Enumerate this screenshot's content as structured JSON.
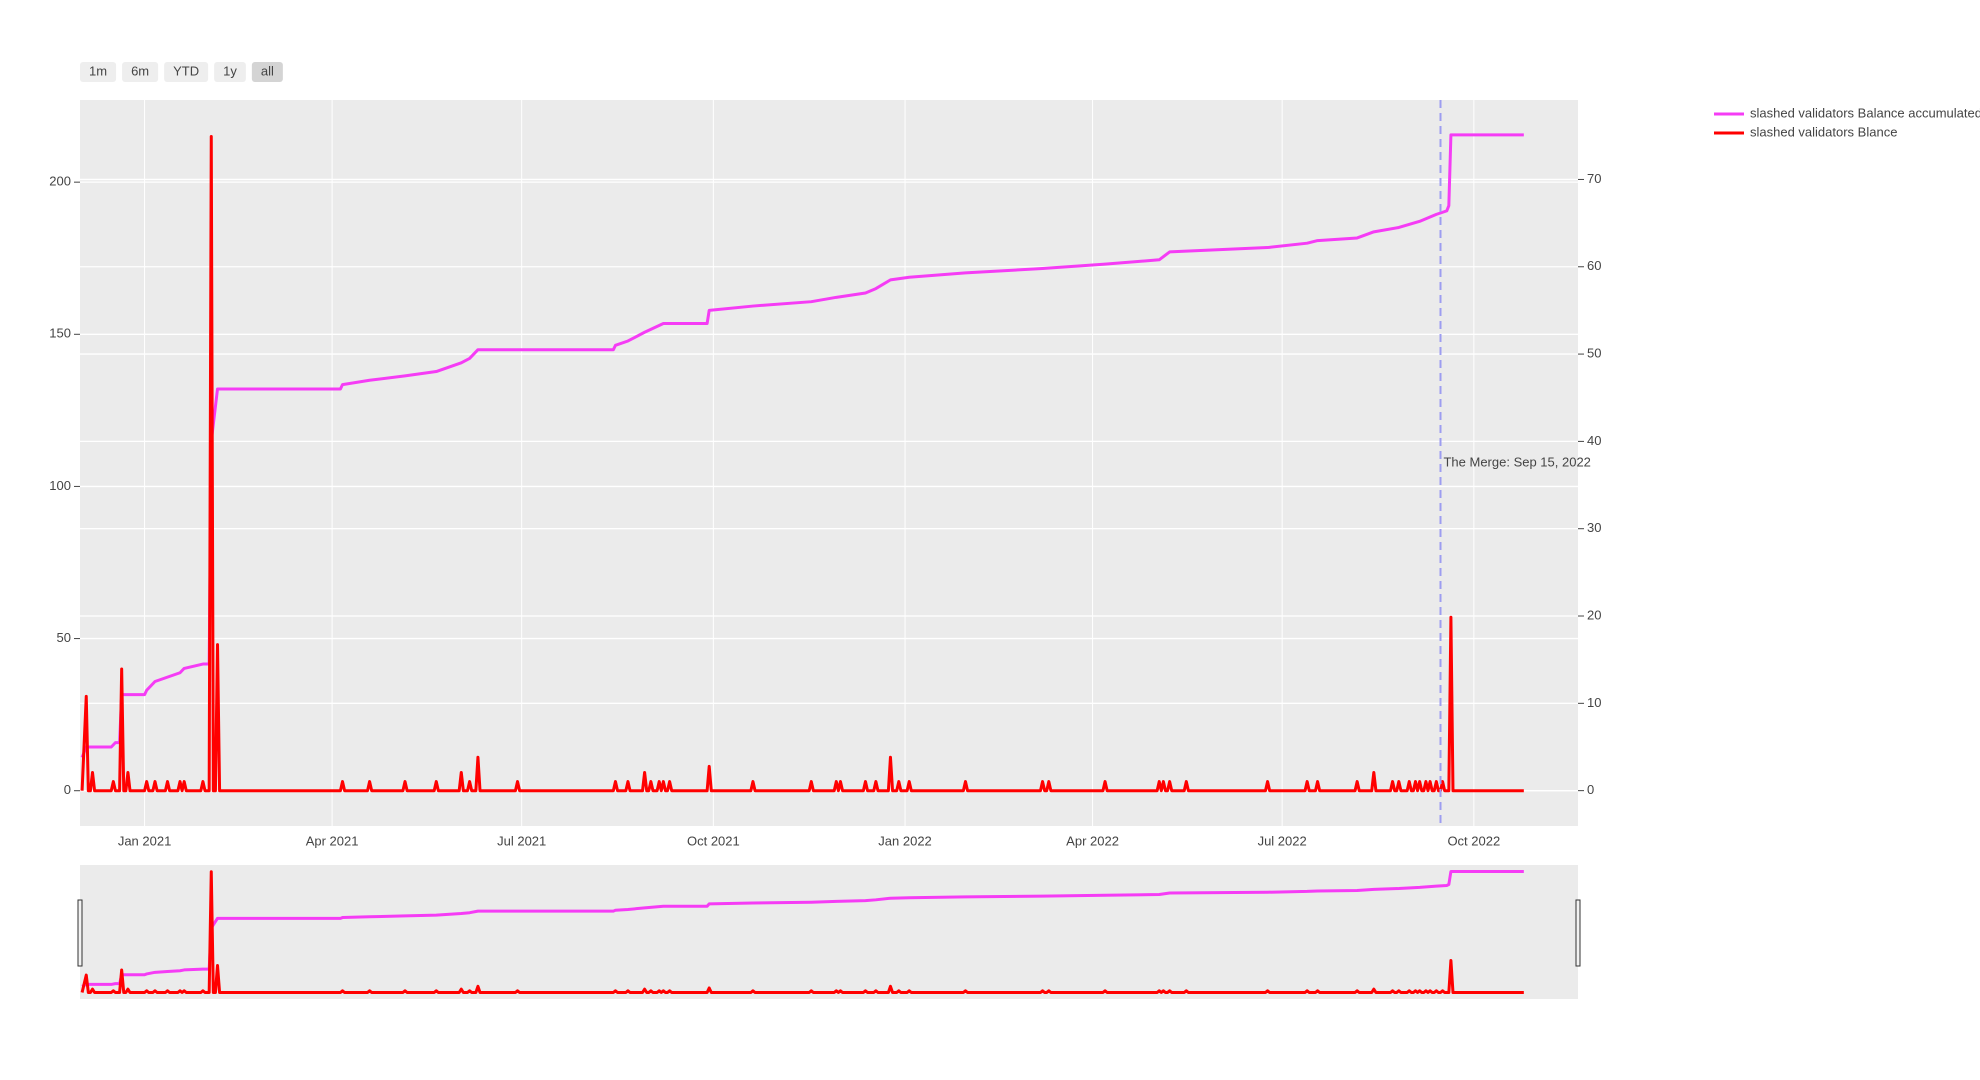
{
  "chart_data": {
    "type": "line",
    "range_buttons": {
      "labels": [
        "1m",
        "6m",
        "YTD",
        "1y",
        "all"
      ],
      "active": 4
    },
    "xlim": [
      "2020-12-01",
      "2022-11-20"
    ],
    "xticks": [
      {
        "value": "2021-01-01",
        "label": "Jan 2021"
      },
      {
        "value": "2021-04-01",
        "label": "Apr 2021"
      },
      {
        "value": "2021-07-01",
        "label": "Jul 2021"
      },
      {
        "value": "2021-10-01",
        "label": "Oct 2021"
      },
      {
        "value": "2022-01-01",
        "label": "Jan 2022"
      },
      {
        "value": "2022-04-01",
        "label": "Apr 2022"
      },
      {
        "value": "2022-07-01",
        "label": "Jul 2022"
      },
      {
        "value": "2022-10-01",
        "label": "Oct 2022"
      }
    ],
    "ylim": [
      -11.6,
      227
    ],
    "yticks": [
      0,
      50,
      100,
      150,
      200
    ],
    "y2lim": [
      -4.05,
      79.1
    ],
    "y2ticks": [
      0,
      10,
      20,
      30,
      40,
      50,
      60,
      70
    ],
    "grid": true,
    "legend": "top-right",
    "range_slider": true,
    "annotation": {
      "text": "The Merge: Sep 15, 2022",
      "x": "2022-09-15",
      "color": "#9d9df0"
    },
    "series": [
      {
        "name": "slashed validators Balance accumulated",
        "color": "#f53cf5",
        "axis": "y2",
        "x": [
          "2020-12-02",
          "2020-12-04",
          "2020-12-16",
          "2020-12-18",
          "2020-12-20",
          "2020-12-21",
          "2021-01-01",
          "2021-01-02",
          "2021-01-06",
          "2021-01-12",
          "2021-01-18",
          "2021-01-20",
          "2021-01-29",
          "2021-02-01",
          "2021-02-02",
          "2021-02-05",
          "2021-04-05",
          "2021-04-06",
          "2021-04-19",
          "2021-05-06",
          "2021-05-21",
          "2021-06-02",
          "2021-06-06",
          "2021-06-10",
          "2021-08-14",
          "2021-08-15",
          "2021-08-21",
          "2021-08-29",
          "2021-09-07",
          "2021-09-28",
          "2021-09-29",
          "2021-10-20",
          "2021-11-17",
          "2021-11-29",
          "2021-12-13",
          "2021-12-18",
          "2021-12-25",
          "2022-01-03",
          "2022-01-30",
          "2022-03-08",
          "2022-04-07",
          "2022-05-03",
          "2022-05-08",
          "2022-06-24",
          "2022-07-13",
          "2022-07-18",
          "2022-08-06",
          "2022-08-14",
          "2022-08-26",
          "2022-09-05",
          "2022-09-13",
          "2022-09-18",
          "2022-09-19",
          "2022-09-20",
          "2022-10-25"
        ],
        "values": [
          3.8,
          5,
          5,
          5.5,
          5.5,
          11,
          11,
          11.5,
          12.5,
          13,
          13.5,
          14,
          14.5,
          14.5,
          40,
          46,
          46,
          46.5,
          47,
          47.5,
          48,
          49,
          49.5,
          50.5,
          50.5,
          51,
          51.5,
          52.5,
          53.5,
          53.5,
          55,
          55.5,
          56,
          56.5,
          57,
          57.5,
          58.5,
          58.8,
          59.3,
          59.8,
          60.3,
          60.8,
          61.7,
          62.2,
          62.7,
          63,
          63.3,
          64,
          64.5,
          65.2,
          66,
          66.4,
          67,
          75.1,
          75.1
        ]
      },
      {
        "name": "slashed validators Blance",
        "color": "#ff0000",
        "axis": "y",
        "x": [
          "2020-12-02",
          "2020-12-04",
          "2020-12-05",
          "2020-12-06",
          "2020-12-07",
          "2020-12-08",
          "2020-12-16",
          "2020-12-17",
          "2020-12-18",
          "2020-12-20",
          "2020-12-21",
          "2020-12-22",
          "2020-12-23",
          "2020-12-24",
          "2020-12-25",
          "2021-01-01",
          "2021-01-02",
          "2021-01-03",
          "2021-01-05",
          "2021-01-06",
          "2021-01-07",
          "2021-01-11",
          "2021-01-12",
          "2021-01-13",
          "2021-01-17",
          "2021-01-18",
          "2021-01-19",
          "2021-01-20",
          "2021-01-21",
          "2021-01-28",
          "2021-01-29",
          "2021-01-30",
          "2021-02-01",
          "2021-02-02",
          "2021-02-03",
          "2021-02-04",
          "2021-02-05",
          "2021-02-06",
          "2021-04-05",
          "2021-04-06",
          "2021-04-07",
          "2021-04-18",
          "2021-04-19",
          "2021-04-20",
          "2021-05-05",
          "2021-05-06",
          "2021-05-07",
          "2021-05-20",
          "2021-05-21",
          "2021-05-22",
          "2021-06-01",
          "2021-06-02",
          "2021-06-03",
          "2021-06-05",
          "2021-06-06",
          "2021-06-07",
          "2021-06-09",
          "2021-06-10",
          "2021-06-11",
          "2021-06-28",
          "2021-06-29",
          "2021-06-30",
          "2021-08-14",
          "2021-08-15",
          "2021-08-16",
          "2021-08-20",
          "2021-08-21",
          "2021-08-22",
          "2021-08-28",
          "2021-08-29",
          "2021-08-30",
          "2021-08-31",
          "2021-09-01",
          "2021-09-02",
          "2021-09-04",
          "2021-09-05",
          "2021-09-06",
          "2021-09-07",
          "2021-09-08",
          "2021-09-09",
          "2021-09-10",
          "2021-09-11",
          "2021-09-28",
          "2021-09-29",
          "2021-09-30",
          "2021-10-19",
          "2021-10-20",
          "2021-10-21",
          "2021-11-16",
          "2021-11-17",
          "2021-11-18",
          "2021-11-28",
          "2021-11-29",
          "2021-11-30",
          "2021-12-01",
          "2021-12-02",
          "2021-12-12",
          "2021-12-13",
          "2021-12-14",
          "2021-12-17",
          "2021-12-18",
          "2021-12-19",
          "2021-12-24",
          "2021-12-25",
          "2021-12-26",
          "2021-12-28",
          "2021-12-29",
          "2021-12-30",
          "2022-01-02",
          "2022-01-03",
          "2022-01-04",
          "2022-01-29",
          "2022-01-30",
          "2022-01-31",
          "2022-03-07",
          "2022-03-08",
          "2022-03-09",
          "2022-03-10",
          "2022-03-11",
          "2022-03-12",
          "2022-04-06",
          "2022-04-07",
          "2022-04-08",
          "2022-05-02",
          "2022-05-03",
          "2022-05-04",
          "2022-05-05",
          "2022-05-06",
          "2022-05-07",
          "2022-05-08",
          "2022-05-09",
          "2022-05-15",
          "2022-05-16",
          "2022-05-17",
          "2022-06-23",
          "2022-06-24",
          "2022-06-25",
          "2022-07-12",
          "2022-07-13",
          "2022-07-14",
          "2022-07-17",
          "2022-07-18",
          "2022-07-19",
          "2022-08-05",
          "2022-08-06",
          "2022-08-07",
          "2022-08-13",
          "2022-08-14",
          "2022-08-15",
          "2022-08-22",
          "2022-08-23",
          "2022-08-24",
          "2022-08-25",
          "2022-08-26",
          "2022-08-27",
          "2022-08-30",
          "2022-08-31",
          "2022-09-01",
          "2022-09-02",
          "2022-09-03",
          "2022-09-04",
          "2022-09-05",
          "2022-09-06",
          "2022-09-07",
          "2022-09-08",
          "2022-09-09",
          "2022-09-10",
          "2022-09-11",
          "2022-09-12",
          "2022-09-13",
          "2022-09-14",
          "2022-09-15",
          "2022-09-16",
          "2022-09-17",
          "2022-09-19",
          "2022-09-20",
          "2022-09-21",
          "2022-10-25"
        ],
        "values": [
          0,
          31,
          0,
          0,
          6,
          0,
          0,
          3,
          0,
          0,
          40,
          0,
          0,
          6,
          0,
          0,
          3,
          0,
          0,
          3,
          0,
          0,
          3,
          0,
          0,
          3,
          0,
          3,
          0,
          0,
          3,
          0,
          0,
          215,
          0,
          0,
          48,
          0,
          0,
          3,
          0,
          0,
          3,
          0,
          0,
          3,
          0,
          0,
          3,
          0,
          0,
          6,
          0,
          0,
          3,
          0,
          0,
          11,
          0,
          0,
          3,
          0,
          0,
          3,
          0,
          0,
          3,
          0,
          0,
          6,
          0,
          0,
          3,
          0,
          0,
          3,
          0,
          3,
          0,
          0,
          3,
          0,
          0,
          8,
          0,
          0,
          3,
          0,
          0,
          3,
          0,
          0,
          3,
          0,
          3,
          0,
          0,
          3,
          0,
          0,
          3,
          0,
          0,
          11,
          0,
          0,
          3,
          0,
          0,
          3,
          0,
          0,
          3,
          0,
          0,
          3,
          0,
          0,
          3,
          0,
          0,
          3,
          0,
          0,
          3,
          0,
          3,
          0,
          0,
          3,
          0,
          0,
          3,
          0,
          0,
          3,
          0,
          0,
          3,
          0,
          0,
          3,
          0,
          0,
          3,
          0,
          0,
          6,
          0,
          0,
          3,
          0,
          0,
          3,
          0,
          0,
          3,
          0,
          0,
          3,
          0,
          3,
          0,
          0,
          3,
          0,
          3,
          0,
          0,
          3,
          0,
          0,
          3,
          0,
          0,
          57,
          0,
          0
        ]
      }
    ]
  }
}
